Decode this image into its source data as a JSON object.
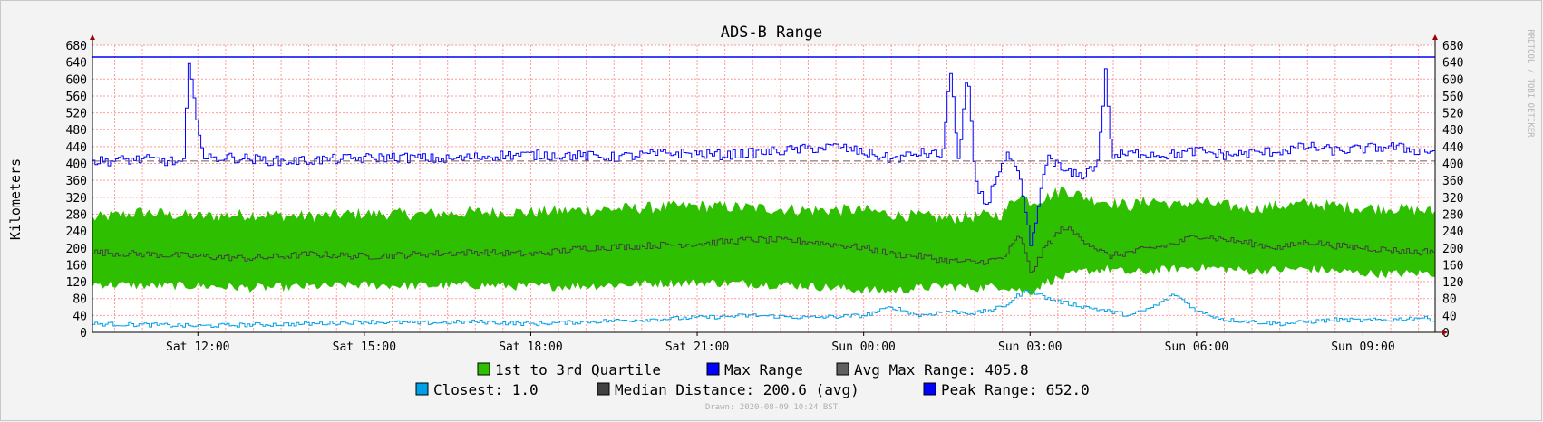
{
  "chart_data": {
    "type": "area",
    "title": "ADS-B Range",
    "ylabel": "Kilometers",
    "watermark": "RRDTOOL / TOBI OETIKER",
    "drawn": "Drawn: 2020-08-09 10:24 BST",
    "ylim": [
      0,
      680
    ],
    "yticks": [
      0,
      40,
      80,
      120,
      160,
      200,
      240,
      280,
      320,
      360,
      400,
      440,
      480,
      520,
      560,
      600,
      640,
      680
    ],
    "x_range_hours": [
      10.1,
      34.3
    ],
    "xticks": [
      {
        "label": "Sat 12:00",
        "hour": 12
      },
      {
        "label": "Sat 15:00",
        "hour": 15
      },
      {
        "label": "Sat 18:00",
        "hour": 18
      },
      {
        "label": "Sat 21:00",
        "hour": 21
      },
      {
        "label": "Sun 00:00",
        "hour": 24
      },
      {
        "label": "Sun 03:00",
        "hour": 27
      },
      {
        "label": "Sun 06:00",
        "hour": 30
      },
      {
        "label": "Sun 09:00",
        "hour": 33
      }
    ],
    "colors": {
      "quartile": "#2ec000",
      "max": "#0000ff",
      "avg_max": "#606060",
      "closest": "#00a0e8",
      "median": "#404040",
      "peak": "#0000ff",
      "grid": "#ff9999",
      "background": "#ffffff"
    },
    "series": [
      {
        "name": "Max Range",
        "x": [
          10.1,
          11.0,
          11.5,
          11.75,
          11.8,
          11.9,
          12.1,
          12.5,
          13.5,
          14.5,
          15.5,
          16.5,
          17.5,
          18.5,
          19.5,
          20.5,
          21.5,
          22.5,
          23.5,
          24.2,
          24.5,
          25.0,
          25.4,
          25.55,
          25.7,
          25.85,
          26.0,
          26.2,
          26.4,
          26.6,
          26.8,
          27.0,
          27.3,
          27.6,
          27.9,
          28.2,
          28.35,
          28.45,
          28.6,
          29.0,
          29.5,
          30.0,
          30.5,
          31.0,
          31.5,
          32.0,
          32.5,
          33.0,
          33.5,
          34.0,
          34.3
        ],
        "values": [
          405,
          410,
          405,
          400,
          650,
          560,
          410,
          415,
          405,
          410,
          415,
          410,
          420,
          420,
          415,
          425,
          420,
          430,
          440,
          420,
          410,
          425,
          420,
          620,
          400,
          620,
          350,
          300,
          380,
          420,
          360,
          200,
          420,
          380,
          370,
          400,
          625,
          420,
          420,
          425,
          420,
          430,
          420,
          425,
          430,
          440,
          430,
          435,
          440,
          430,
          430
        ]
      },
      {
        "name": "Avg Max Range",
        "value": 405.8
      },
      {
        "name": "1st to 3rd Quartile",
        "x": [
          10.1,
          11.0,
          12.0,
          13.0,
          14.0,
          15.0,
          16.0,
          17.0,
          18.0,
          19.0,
          20.0,
          21.0,
          22.0,
          23.0,
          24.0,
          24.5,
          25.0,
          25.5,
          26.0,
          26.5,
          26.8,
          27.0,
          27.3,
          27.6,
          28.0,
          28.4,
          28.8,
          29.2,
          29.6,
          30.0,
          30.5,
          31.0,
          31.5,
          32.0,
          32.5,
          33.0,
          33.5,
          34.0,
          34.3
        ],
        "low": [
          115,
          110,
          110,
          105,
          108,
          112,
          110,
          112,
          108,
          110,
          115,
          118,
          115,
          110,
          100,
          98,
          105,
          110,
          105,
          110,
          100,
          95,
          120,
          130,
          145,
          150,
          140,
          145,
          150,
          155,
          150,
          145,
          148,
          150,
          145,
          140,
          138,
          140,
          140
        ],
        "high": [
          270,
          285,
          275,
          280,
          275,
          282,
          280,
          285,
          285,
          290,
          295,
          300,
          295,
          290,
          290,
          280,
          275,
          270,
          275,
          280,
          330,
          310,
          320,
          340,
          320,
          310,
          300,
          315,
          300,
          310,
          300,
          295,
          300,
          305,
          300,
          295,
          295,
          290,
          285
        ]
      },
      {
        "name": "Median Distance",
        "avg": 200.6,
        "x": [
          10.1,
          11.0,
          12.0,
          13.0,
          14.0,
          15.0,
          16.0,
          17.0,
          18.0,
          19.0,
          20.0,
          21.0,
          22.0,
          23.0,
          24.0,
          24.5,
          25.0,
          25.5,
          26.0,
          26.5,
          26.8,
          27.0,
          27.3,
          27.6,
          28.0,
          28.4,
          28.8,
          29.2,
          29.6,
          30.0,
          30.5,
          31.0,
          31.5,
          32.0,
          32.5,
          33.0,
          33.5,
          34.0,
          34.3
        ],
        "values": [
          190,
          185,
          180,
          175,
          185,
          180,
          185,
          190,
          185,
          200,
          205,
          210,
          220,
          215,
          200,
          185,
          180,
          170,
          165,
          175,
          230,
          140,
          210,
          250,
          215,
          180,
          190,
          200,
          210,
          230,
          220,
          210,
          200,
          215,
          205,
          200,
          195,
          190,
          195
        ]
      },
      {
        "name": "Closest",
        "min": 1.0,
        "x": [
          10.1,
          11.0,
          12.0,
          13.0,
          14.0,
          15.0,
          16.0,
          17.0,
          18.0,
          19.0,
          20.0,
          21.0,
          22.0,
          23.0,
          24.0,
          24.5,
          25.0,
          25.5,
          26.0,
          26.5,
          26.8,
          27.0,
          27.3,
          27.6,
          28.0,
          28.4,
          28.8,
          29.2,
          29.6,
          30.0,
          30.5,
          31.0,
          31.5,
          32.0,
          32.5,
          33.0,
          33.5,
          34.0,
          34.3
        ],
        "values": [
          20,
          18,
          15,
          18,
          20,
          25,
          22,
          25,
          20,
          25,
          30,
          35,
          40,
          35,
          40,
          60,
          40,
          50,
          45,
          60,
          90,
          100,
          80,
          70,
          60,
          50,
          40,
          60,
          90,
          50,
          30,
          25,
          20,
          25,
          30,
          28,
          30,
          35,
          30
        ]
      },
      {
        "name": "Peak Range",
        "value": 652.0
      }
    ]
  },
  "legend": {
    "row1": [
      {
        "label": "1st to 3rd Quartile",
        "value": ""
      },
      {
        "label": "Max Range",
        "value": ""
      },
      {
        "label": "Avg Max Range:",
        "value": "405.8"
      }
    ],
    "row2": [
      {
        "label": "Closest:",
        "value": "1.0"
      },
      {
        "label": "Median Distance:",
        "value": "200.6 (avg)"
      },
      {
        "label": "Peak Range:",
        "value": "652.0"
      }
    ]
  }
}
